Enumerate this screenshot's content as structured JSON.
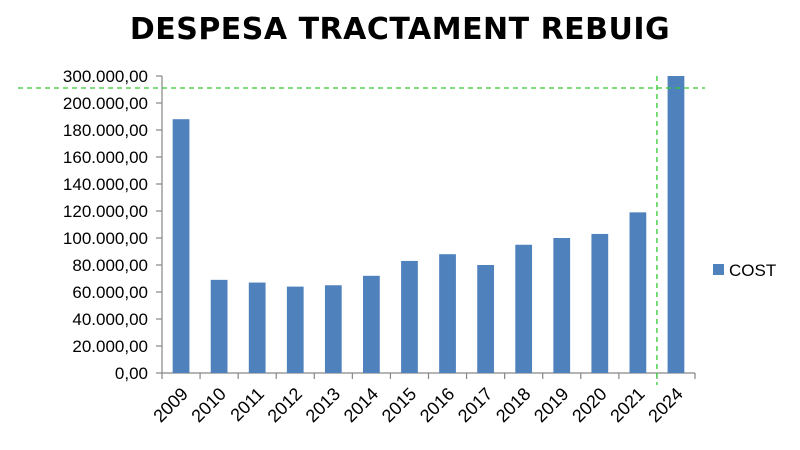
{
  "chart_data": {
    "type": "bar",
    "title": "DESPESA TRACTAMENT REBUIG",
    "categories": [
      "2009",
      "2010",
      "2011",
      "2012",
      "2013",
      "2014",
      "2015",
      "2016",
      "2017",
      "2018",
      "2019",
      "2020",
      "2021",
      "2024"
    ],
    "series": [
      {
        "name": "COST",
        "color": "#4F81BD",
        "values": [
          188000,
          69000,
          67000,
          64000,
          65000,
          72000,
          83000,
          88000,
          80000,
          95000,
          100000,
          103000,
          119000,
          300000
        ]
      }
    ],
    "y_ticks": [
      {
        "value": 0,
        "label": "0,00"
      },
      {
        "value": 20000,
        "label": "20.000,00"
      },
      {
        "value": 40000,
        "label": "40.000,00"
      },
      {
        "value": 60000,
        "label": "60.000,00"
      },
      {
        "value": 80000,
        "label": "80.000,00"
      },
      {
        "value": 100000,
        "label": "100.000,00"
      },
      {
        "value": 120000,
        "label": "120.000,00"
      },
      {
        "value": 140000,
        "label": "140.000,00"
      },
      {
        "value": 160000,
        "label": "160.000,00"
      },
      {
        "value": 180000,
        "label": "180.000,00"
      },
      {
        "value": 200000,
        "label": "200.000,00"
      },
      {
        "value": 300000,
        "label": "300.000,00"
      }
    ],
    "ylim": [
      0,
      300000
    ],
    "y_axis_break": "between 200.000,00 and 300.000,00",
    "grid": false,
    "legend_position": "right",
    "annotations": [
      {
        "kind": "dashed-horizontal-line",
        "color": "#33CC33",
        "value": 205000
      },
      {
        "kind": "dashed-vertical-line",
        "color": "#33CC33",
        "between": [
          "2021",
          "2024"
        ]
      }
    ]
  }
}
